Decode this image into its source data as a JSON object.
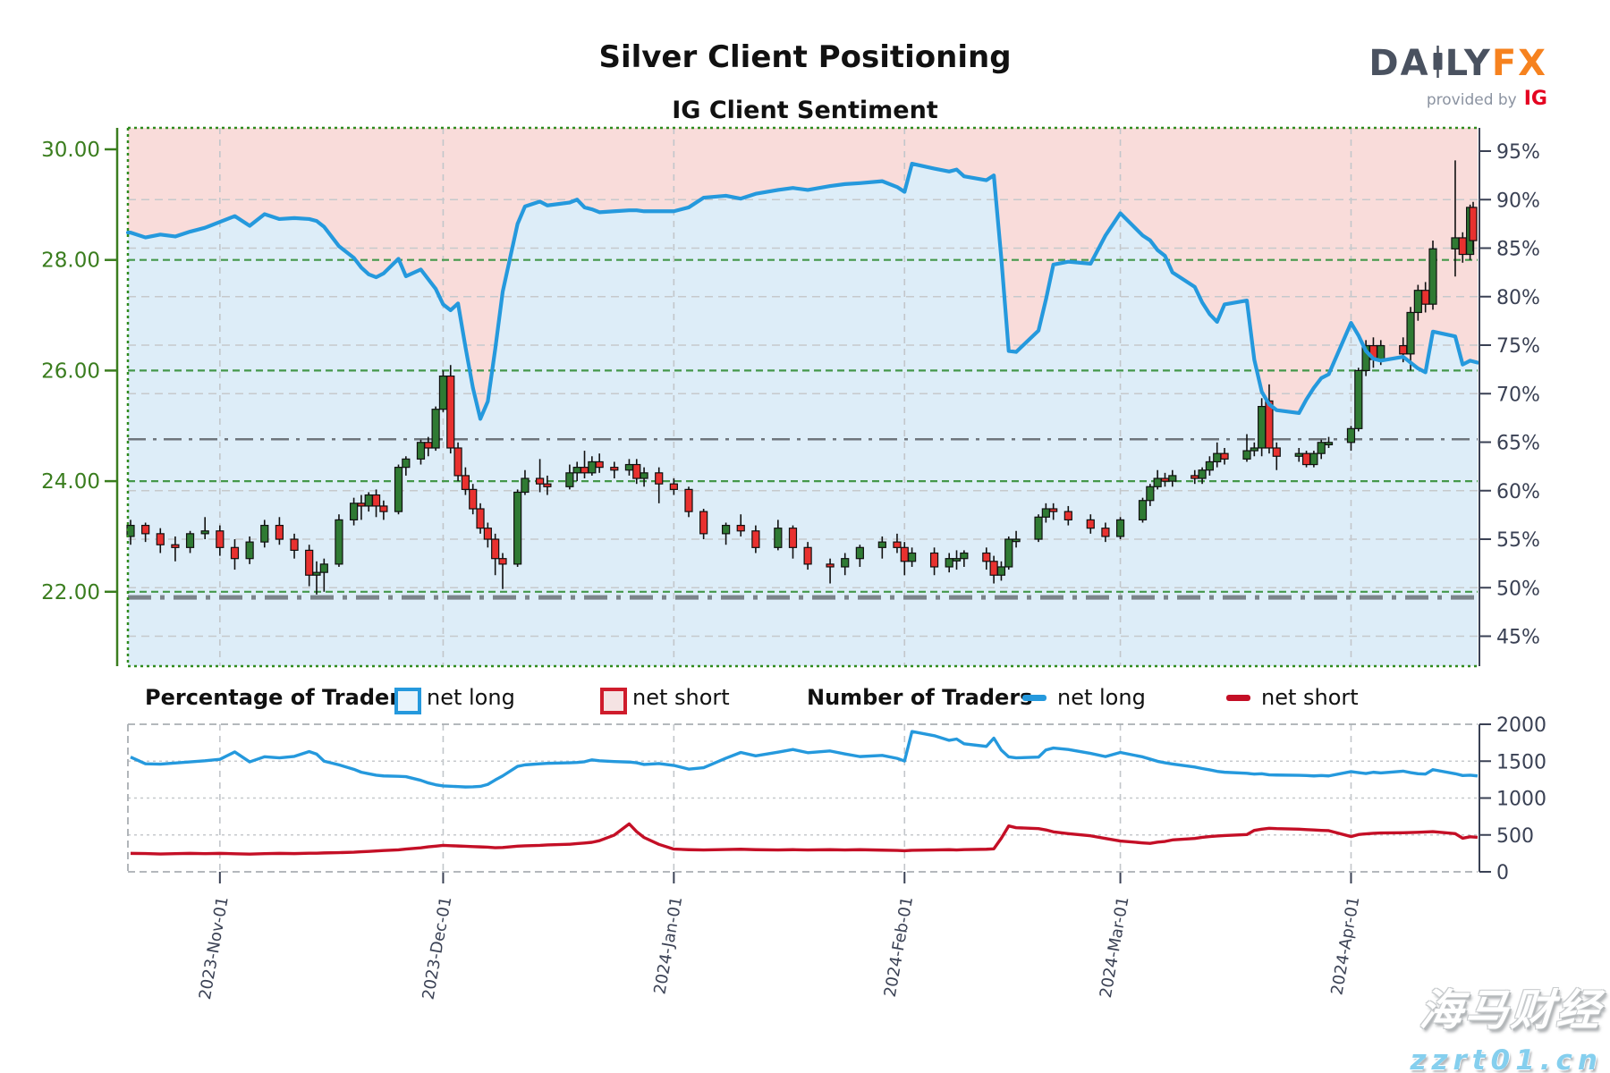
{
  "title": "Silver Client Positioning",
  "subtitle": "IG Client Sentiment",
  "logo": {
    "brand_left": "DA",
    "brand_mid": "LY",
    "brand_right": "FX",
    "tagline": "provided by",
    "provider": "IG"
  },
  "watermark": {
    "line1": "海马财经",
    "line2": "zzrt01.cn"
  },
  "legend": {
    "group1_label": "Percentage of Traders",
    "group1_net_long": "net long",
    "group1_net_short": "net short",
    "group2_label": "Number of Traders",
    "group2_net_long": "net long",
    "group2_net_short": "net short"
  },
  "colors": {
    "sentiment_blue": "#2599dd",
    "bull_green": "#2f7a33",
    "bear_red": "#e8312f",
    "pink_fill": "#f9dcda",
    "blue_fill": "#ddedf8",
    "axis_green": "#3a7d1e",
    "grid_green": "#44984a",
    "axis_dark": "#3a4154",
    "grid_gray": "#c6c9cc",
    "month_gray": "#c2c6ca",
    "border_gray": "#a9aeb3",
    "short_red": "#c40f26",
    "dashdot_gray": "#6e757c",
    "heavy_gray": "#7b838a"
  },
  "chart_data": {
    "type": "candlestick+line",
    "title": "Silver price (candles, left axis) vs IG client net-long sentiment (blue line, right axis); lower panel: number of traders net long / net short",
    "price_axis": {
      "min": 21.0,
      "max": 30.0,
      "ticks": [
        [
          "30.00",
          30
        ],
        [
          "28.00",
          28
        ],
        [
          "26.00",
          26
        ],
        [
          "24.00",
          24
        ],
        [
          "22.00",
          22
        ]
      ]
    },
    "pct_axis": {
      "min": 42,
      "max": 97,
      "ticks": [
        [
          "95%",
          95
        ],
        [
          "90%",
          90
        ],
        [
          "85%",
          85
        ],
        [
          "80%",
          80
        ],
        [
          "75%",
          75
        ],
        [
          "70%",
          70
        ],
        [
          "65%",
          65
        ],
        [
          "60%",
          60
        ],
        [
          "55%",
          55
        ],
        [
          "50%",
          50
        ],
        [
          "45%",
          45
        ]
      ]
    },
    "count_axis": {
      "min": 0,
      "max": 2000,
      "ticks": [
        [
          "2000",
          2000
        ],
        [
          "1500",
          1500
        ],
        [
          "1000",
          1000
        ],
        [
          "500",
          500
        ],
        [
          "0",
          0
        ]
      ]
    },
    "grid": {
      "price_lines": [
        28,
        26,
        24,
        22
      ],
      "pct_lines": [
        90,
        85,
        80,
        75,
        70,
        60,
        55,
        50,
        45
      ],
      "dashdot_pct_line": 65.3,
      "heavy_dash_pct_line": 49.0,
      "count_lines": [
        1500,
        1000,
        500
      ]
    },
    "x_ticks": [
      [
        "2023-Nov-01",
        "2023-11-01"
      ],
      [
        "2023-Dec-01",
        "2023-12-01"
      ],
      [
        "2024-Jan-01",
        "2024-01-01"
      ],
      [
        "2024-Feb-01",
        "2024-02-01"
      ],
      [
        "2024-Mar-01",
        "2024-03-01"
      ],
      [
        "2024-Apr-01",
        "2024-04-01"
      ]
    ],
    "columns": [
      "date",
      "open",
      "high",
      "low",
      "close",
      "net_long_pct",
      "net_long_traders",
      "net_short_traders"
    ],
    "days": [
      [
        "2023-10-20",
        23.0,
        23.3,
        22.85,
        23.2,
        86.6,
        1555,
        250
      ],
      [
        "2023-10-22",
        23.2,
        23.25,
        22.9,
        23.05,
        86.1,
        1465,
        248
      ],
      [
        "2023-10-24",
        23.05,
        23.15,
        22.7,
        22.85,
        86.4,
        1460,
        242
      ],
      [
        "2023-10-26",
        22.85,
        23.0,
        22.55,
        22.8,
        86.2,
        1475,
        246
      ],
      [
        "2023-10-28",
        22.8,
        23.1,
        22.7,
        23.05,
        86.7,
        1490,
        250
      ],
      [
        "2023-10-30",
        23.05,
        23.35,
        22.95,
        23.1,
        87.1,
        1505,
        246
      ],
      [
        "2023-11-01",
        23.1,
        23.2,
        22.65,
        22.8,
        87.7,
        1525,
        250
      ],
      [
        "2023-11-03",
        22.8,
        22.95,
        22.4,
        22.6,
        88.3,
        1625,
        245
      ],
      [
        "2023-11-05",
        22.6,
        23.0,
        22.5,
        22.9,
        87.3,
        1490,
        240
      ],
      [
        "2023-11-07",
        22.9,
        23.3,
        22.8,
        23.2,
        88.5,
        1560,
        246
      ],
      [
        "2023-11-09",
        23.2,
        23.35,
        22.85,
        22.95,
        88.0,
        1545,
        250
      ],
      [
        "2023-11-11",
        22.95,
        23.05,
        22.6,
        22.75,
        88.1,
        1565,
        247
      ],
      [
        "2023-11-13",
        22.75,
        22.85,
        22.1,
        22.3,
        88.0,
        1630,
        252
      ],
      [
        "2023-11-14",
        22.3,
        22.55,
        21.95,
        22.35,
        87.8,
        1595,
        252
      ],
      [
        "2023-11-15",
        22.35,
        22.6,
        22.0,
        22.5,
        87.2,
        1500,
        256
      ],
      [
        "2023-11-17",
        22.5,
        23.4,
        22.45,
        23.3,
        85.2,
        1450,
        260
      ],
      [
        "2023-11-19",
        23.3,
        23.7,
        23.2,
        23.6,
        84.0,
        1390,
        266
      ],
      [
        "2023-11-20",
        23.6,
        23.75,
        23.3,
        23.55,
        83.0,
        1350,
        272
      ],
      [
        "2023-11-21",
        23.55,
        23.8,
        23.45,
        23.75,
        82.3,
        1330,
        276
      ],
      [
        "2023-11-22",
        23.75,
        23.85,
        23.35,
        23.55,
        82.0,
        1310,
        282
      ],
      [
        "2023-11-23",
        23.55,
        23.65,
        23.3,
        23.45,
        82.4,
        1300,
        288
      ],
      [
        "2023-11-25",
        23.45,
        24.3,
        23.4,
        24.25,
        83.9,
        1295,
        298
      ],
      [
        "2023-11-26",
        24.25,
        24.45,
        24.1,
        24.4,
        82.1,
        1290,
        308
      ],
      [
        "2023-11-28",
        24.4,
        24.75,
        24.3,
        24.7,
        82.8,
        1240,
        325
      ],
      [
        "2023-11-29",
        24.7,
        24.8,
        24.45,
        24.6,
        81.8,
        1205,
        338
      ],
      [
        "2023-11-30",
        24.6,
        25.35,
        24.55,
        25.3,
        80.8,
        1180,
        348
      ],
      [
        "2023-12-01",
        25.3,
        26.0,
        25.25,
        25.9,
        79.2,
        1165,
        358
      ],
      [
        "2023-12-02",
        25.9,
        26.1,
        24.5,
        24.6,
        78.6,
        1160,
        354
      ],
      [
        "2023-12-03",
        24.6,
        24.7,
        24.0,
        24.1,
        79.3,
        1155,
        350
      ],
      [
        "2023-12-04",
        24.1,
        24.25,
        23.75,
        23.85,
        74.8,
        1150,
        346
      ],
      [
        "2023-12-05",
        23.85,
        23.95,
        23.4,
        23.5,
        70.6,
        1152,
        342
      ],
      [
        "2023-12-06",
        23.5,
        23.6,
        23.05,
        23.15,
        67.4,
        1158,
        338
      ],
      [
        "2023-12-07",
        23.15,
        23.25,
        22.8,
        22.95,
        69.2,
        1185,
        334
      ],
      [
        "2023-12-08",
        22.95,
        23.05,
        22.3,
        22.6,
        74.6,
        1245,
        326
      ],
      [
        "2023-12-09",
        22.6,
        22.7,
        22.05,
        22.5,
        80.5,
        1300,
        330
      ],
      [
        "2023-12-11",
        22.5,
        23.85,
        22.45,
        23.8,
        87.5,
        1430,
        348
      ],
      [
        "2023-12-12",
        23.8,
        24.2,
        23.75,
        24.05,
        89.3,
        1450,
        352
      ],
      [
        "2023-12-14",
        24.05,
        24.4,
        23.8,
        23.95,
        89.8,
        1465,
        358
      ],
      [
        "2023-12-15",
        23.95,
        24.1,
        23.75,
        23.9,
        89.4,
        1470,
        364
      ],
      [
        "2023-12-18",
        23.9,
        24.3,
        23.85,
        24.15,
        89.7,
        1478,
        374
      ],
      [
        "2023-12-19",
        24.15,
        24.35,
        24.0,
        24.25,
        90.0,
        1482,
        382
      ],
      [
        "2023-12-20",
        24.25,
        24.55,
        24.05,
        24.15,
        89.2,
        1492,
        390
      ],
      [
        "2023-12-21",
        24.15,
        24.45,
        24.1,
        24.35,
        89.0,
        1518,
        400
      ],
      [
        "2023-12-22",
        24.35,
        24.5,
        24.15,
        24.25,
        88.7,
        1505,
        422
      ],
      [
        "2023-12-24",
        24.25,
        24.35,
        24.05,
        24.2,
        88.8,
        1495,
        498
      ],
      [
        "2023-12-26",
        24.2,
        24.4,
        24.1,
        24.3,
        88.9,
        1488,
        650
      ],
      [
        "2023-12-27",
        24.3,
        24.4,
        23.95,
        24.05,
        88.9,
        1478,
        545
      ],
      [
        "2023-12-28",
        24.05,
        24.25,
        23.9,
        24.15,
        88.8,
        1455,
        465
      ],
      [
        "2023-12-30",
        24.15,
        24.25,
        23.6,
        23.95,
        88.8,
        1468,
        372
      ],
      [
        "2024-01-01",
        23.95,
        24.05,
        23.75,
        23.85,
        88.8,
        1442,
        308
      ],
      [
        "2024-01-03",
        23.85,
        23.9,
        23.35,
        23.45,
        89.2,
        1392,
        300
      ],
      [
        "2024-01-05",
        23.45,
        23.5,
        22.95,
        23.05,
        90.2,
        1412,
        296
      ],
      [
        "2024-01-08",
        23.05,
        23.25,
        22.85,
        23.2,
        90.4,
        1540,
        302
      ],
      [
        "2024-01-10",
        23.2,
        23.4,
        23.0,
        23.1,
        90.1,
        1618,
        306
      ],
      [
        "2024-01-12",
        23.1,
        23.2,
        22.7,
        22.8,
        90.6,
        1572,
        300
      ],
      [
        "2024-01-15",
        22.8,
        23.3,
        22.75,
        23.15,
        91.0,
        1622,
        296
      ],
      [
        "2024-01-17",
        23.15,
        23.2,
        22.6,
        22.8,
        91.2,
        1658,
        300
      ],
      [
        "2024-01-19",
        22.8,
        22.9,
        22.4,
        22.5,
        91.0,
        1615,
        296
      ],
      [
        "2024-01-22",
        22.5,
        22.6,
        22.15,
        22.45,
        91.4,
        1638,
        300
      ],
      [
        "2024-01-24",
        22.45,
        22.7,
        22.3,
        22.6,
        91.6,
        1598,
        296
      ],
      [
        "2024-01-26",
        22.6,
        22.85,
        22.45,
        22.8,
        91.7,
        1562,
        300
      ],
      [
        "2024-01-29",
        22.8,
        23.0,
        22.6,
        22.9,
        91.9,
        1578,
        294
      ],
      [
        "2024-01-31",
        22.9,
        23.05,
        22.7,
        22.8,
        91.3,
        1538,
        290
      ],
      [
        "2024-02-01",
        22.8,
        22.9,
        22.3,
        22.55,
        90.8,
        1502,
        286
      ],
      [
        "2024-02-02",
        22.55,
        22.8,
        22.45,
        22.7,
        93.7,
        1902,
        292
      ],
      [
        "2024-02-05",
        22.7,
        22.8,
        22.3,
        22.45,
        93.2,
        1845,
        296
      ],
      [
        "2024-02-07",
        22.45,
        22.7,
        22.35,
        22.6,
        92.9,
        1782,
        300
      ],
      [
        "2024-02-08",
        22.6,
        22.75,
        22.4,
        22.6,
        93.1,
        1800,
        296
      ],
      [
        "2024-02-09",
        22.6,
        22.75,
        22.45,
        22.7,
        92.4,
        1735,
        301
      ],
      [
        "2024-02-12",
        22.7,
        22.8,
        22.4,
        22.55,
        92.0,
        1700,
        306
      ],
      [
        "2024-02-13",
        22.55,
        22.65,
        22.15,
        22.3,
        92.5,
        1812,
        312
      ],
      [
        "2024-02-14",
        22.3,
        22.55,
        22.2,
        22.45,
        84.0,
        1650,
        455
      ],
      [
        "2024-02-15",
        22.45,
        23.0,
        22.4,
        22.95,
        74.4,
        1558,
        622
      ],
      [
        "2024-02-16",
        22.95,
        23.1,
        22.8,
        22.95,
        74.3,
        1545,
        598
      ],
      [
        "2024-02-19",
        22.95,
        23.4,
        22.9,
        23.35,
        76.5,
        1555,
        585
      ],
      [
        "2024-02-20",
        23.35,
        23.6,
        23.25,
        23.5,
        79.7,
        1652,
        568
      ],
      [
        "2024-02-21",
        23.5,
        23.6,
        23.3,
        23.45,
        83.3,
        1678,
        542
      ],
      [
        "2024-02-23",
        23.45,
        23.55,
        23.2,
        23.3,
        83.6,
        1658,
        518
      ],
      [
        "2024-02-26",
        23.3,
        23.4,
        23.05,
        23.15,
        83.4,
        1605,
        488
      ],
      [
        "2024-02-28",
        23.15,
        23.25,
        22.9,
        23.0,
        86.3,
        1562,
        452
      ],
      [
        "2024-03-01",
        23.0,
        23.35,
        22.95,
        23.3,
        88.6,
        1618,
        418
      ],
      [
        "2024-03-04",
        23.3,
        23.7,
        23.25,
        23.65,
        86.3,
        1558,
        392
      ],
      [
        "2024-03-05",
        23.65,
        23.95,
        23.55,
        23.9,
        85.8,
        1528,
        385
      ],
      [
        "2024-03-06",
        23.9,
        24.2,
        23.85,
        24.05,
        84.8,
        1498,
        402
      ],
      [
        "2024-03-07",
        24.05,
        24.15,
        23.9,
        24.0,
        84.2,
        1478,
        412
      ],
      [
        "2024-03-08",
        24.0,
        24.2,
        23.9,
        24.1,
        82.5,
        1462,
        432
      ],
      [
        "2024-03-11",
        24.1,
        24.2,
        23.95,
        24.05,
        81.0,
        1420,
        452
      ],
      [
        "2024-03-12",
        24.05,
        24.25,
        23.95,
        24.2,
        79.4,
        1400,
        468
      ],
      [
        "2024-03-13",
        24.2,
        24.45,
        24.1,
        24.35,
        78.2,
        1382,
        478
      ],
      [
        "2024-03-14",
        24.35,
        24.7,
        24.25,
        24.5,
        77.4,
        1362,
        486
      ],
      [
        "2024-03-15",
        24.5,
        24.6,
        24.3,
        24.4,
        79.2,
        1350,
        492
      ],
      [
        "2024-03-18",
        24.4,
        24.85,
        24.35,
        24.55,
        79.6,
        1335,
        505
      ],
      [
        "2024-03-19",
        24.55,
        24.7,
        24.45,
        24.6,
        73.5,
        1325,
        562
      ],
      [
        "2024-03-20",
        24.6,
        25.5,
        24.45,
        25.35,
        70.2,
        1330,
        578
      ],
      [
        "2024-03-21",
        25.45,
        25.75,
        24.5,
        24.6,
        68.9,
        1315,
        590
      ],
      [
        "2024-03-22",
        24.6,
        24.7,
        24.2,
        24.45,
        68.3,
        1312,
        585
      ],
      [
        "2024-03-25",
        24.45,
        24.6,
        24.35,
        24.5,
        68.0,
        1308,
        578
      ],
      [
        "2024-03-26",
        24.5,
        24.55,
        24.25,
        24.3,
        69.4,
        1305,
        572
      ],
      [
        "2024-03-27",
        24.3,
        24.55,
        24.25,
        24.5,
        70.6,
        1300,
        568
      ],
      [
        "2024-03-28",
        24.5,
        24.75,
        24.4,
        24.7,
        71.6,
        1305,
        562
      ],
      [
        "2024-03-29",
        24.7,
        24.8,
        24.6,
        24.7,
        72.0,
        1300,
        558
      ],
      [
        "2024-04-01",
        24.7,
        25.0,
        24.55,
        24.95,
        77.3,
        1358,
        478
      ],
      [
        "2024-04-02",
        24.95,
        26.05,
        24.9,
        26.0,
        76.0,
        1345,
        505
      ],
      [
        "2024-04-03",
        26.0,
        26.55,
        25.9,
        26.45,
        74.4,
        1332,
        515
      ],
      [
        "2024-04-04",
        26.45,
        26.6,
        26.05,
        26.2,
        73.6,
        1350,
        522
      ],
      [
        "2024-04-05",
        26.2,
        26.55,
        26.1,
        26.45,
        73.4,
        1340,
        526
      ],
      [
        "2024-04-08",
        26.45,
        26.6,
        26.15,
        26.3,
        73.8,
        1365,
        530
      ],
      [
        "2024-04-09",
        26.3,
        27.15,
        26.0,
        27.05,
        73.2,
        1345,
        532
      ],
      [
        "2024-04-10",
        27.05,
        27.55,
        26.9,
        27.45,
        72.6,
        1330,
        536
      ],
      [
        "2024-04-11",
        27.45,
        27.6,
        27.05,
        27.2,
        72.2,
        1325,
        540
      ],
      [
        "2024-04-12",
        27.2,
        28.35,
        27.1,
        28.2,
        76.4,
        1385,
        545
      ],
      [
        "2024-04-15",
        28.2,
        29.8,
        27.7,
        28.4,
        75.9,
        1330,
        518
      ],
      [
        "2024-04-16",
        28.4,
        28.5,
        27.95,
        28.1,
        73.0,
        1305,
        455
      ],
      [
        "2024-04-17",
        28.1,
        29.0,
        28.0,
        28.95,
        73.4,
        1310,
        475
      ],
      [
        "2024-04-18",
        28.95,
        29.05,
        28.15,
        28.35,
        73.2,
        1300,
        468
      ]
    ]
  }
}
